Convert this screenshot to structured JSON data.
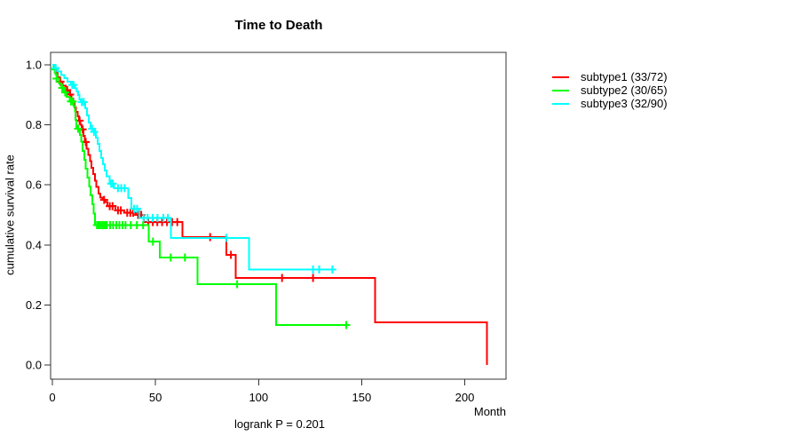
{
  "title": "Time to Death",
  "footnote": "logrank P = 0.201",
  "chart_data": {
    "type": "line",
    "subtype": "kaplan-meier-step-survival",
    "title": "Time to Death",
    "xlabel": "Month",
    "ylabel": "cumulative survival rate",
    "annotation": "logrank P = 0.201",
    "xlim": [
      0,
      220
    ],
    "ylim": [
      0.0,
      1.0
    ],
    "grid": false,
    "legend_position": "right",
    "x_ticks": [
      {
        "v": 0,
        "label": "0"
      },
      {
        "v": 50,
        "label": "50"
      },
      {
        "v": 100,
        "label": "100"
      },
      {
        "v": 150,
        "label": "150"
      },
      {
        "v": 200,
        "label": "200"
      }
    ],
    "y_ticks": [
      {
        "v": 0.0,
        "label": "0.0"
      },
      {
        "v": 0.2,
        "label": "0.2"
      },
      {
        "v": 0.4,
        "label": "0.4"
      },
      {
        "v": 0.6,
        "label": "0.6"
      },
      {
        "v": 0.8,
        "label": "0.8"
      },
      {
        "v": 1.0,
        "label": "1.0"
      }
    ],
    "series": [
      {
        "name": "subtype1",
        "label": "subtype1 (33/72)",
        "events": 33,
        "n": 72,
        "color": "#FF0000",
        "steps": [
          [
            0,
            1.0
          ],
          [
            0.8,
            0.986
          ],
          [
            1.7,
            0.972
          ],
          [
            2.6,
            0.958
          ],
          [
            3.6,
            0.944
          ],
          [
            5,
            0.93
          ],
          [
            6.5,
            0.916
          ],
          [
            8,
            0.901
          ],
          [
            9.3,
            0.887
          ],
          [
            10.1,
            0.872
          ],
          [
            10.8,
            0.858
          ],
          [
            11.5,
            0.843
          ],
          [
            12.2,
            0.829
          ],
          [
            12.9,
            0.814
          ],
          [
            13.6,
            0.8
          ],
          [
            14.3,
            0.785
          ],
          [
            15,
            0.764
          ],
          [
            15.8,
            0.743
          ],
          [
            16.6,
            0.721
          ],
          [
            17.4,
            0.7
          ],
          [
            18.2,
            0.679
          ],
          [
            19,
            0.657
          ],
          [
            19.8,
            0.636
          ],
          [
            20.6,
            0.614
          ],
          [
            21.4,
            0.593
          ],
          [
            22.3,
            0.571
          ],
          [
            23.2,
            0.557
          ],
          [
            24.4,
            0.55
          ],
          [
            25.6,
            0.543
          ],
          [
            26.8,
            0.529
          ],
          [
            30.5,
            0.515
          ],
          [
            34.8,
            0.507
          ],
          [
            40.4,
            0.5
          ],
          [
            44.3,
            0.476
          ],
          [
            63,
            0.426
          ],
          [
            84.3,
            0.367
          ],
          [
            89,
            0.29
          ],
          [
            156.6,
            0.142
          ],
          [
            210.8,
            0.0
          ]
        ],
        "censors": [
          [
            3.9,
            0.944
          ],
          [
            7.2,
            0.916
          ],
          [
            8.6,
            0.901
          ],
          [
            13.2,
            0.814
          ],
          [
            14.7,
            0.785
          ],
          [
            16.2,
            0.743
          ],
          [
            25.1,
            0.55
          ],
          [
            27.8,
            0.529
          ],
          [
            29.2,
            0.529
          ],
          [
            31.8,
            0.515
          ],
          [
            33.2,
            0.515
          ],
          [
            36.3,
            0.507
          ],
          [
            37.8,
            0.507
          ],
          [
            39.2,
            0.507
          ],
          [
            41.6,
            0.5
          ],
          [
            43.1,
            0.5
          ],
          [
            46.5,
            0.476
          ],
          [
            48.7,
            0.476
          ],
          [
            50.9,
            0.476
          ],
          [
            53.2,
            0.476
          ],
          [
            55.6,
            0.476
          ],
          [
            58.1,
            0.476
          ],
          [
            60.6,
            0.476
          ],
          [
            76.5,
            0.426
          ],
          [
            86.6,
            0.367
          ],
          [
            111.4,
            0.29
          ],
          [
            126.4,
            0.29
          ]
        ]
      },
      {
        "name": "subtype2",
        "label": "subtype2 (30/65)",
        "events": 30,
        "n": 65,
        "color": "#00FF00",
        "steps": [
          [
            0,
            1.0
          ],
          [
            0.7,
            0.985
          ],
          [
            1.5,
            0.969
          ],
          [
            2.4,
            0.954
          ],
          [
            3.3,
            0.938
          ],
          [
            4.3,
            0.923
          ],
          [
            5.5,
            0.908
          ],
          [
            6.9,
            0.893
          ],
          [
            8.3,
            0.878
          ],
          [
            10.3,
            0.862
          ],
          [
            10.9,
            0.846
          ],
          [
            11.3,
            0.816
          ],
          [
            11.7,
            0.787
          ],
          [
            13.3,
            0.766
          ],
          [
            13.9,
            0.744
          ],
          [
            14.6,
            0.713
          ],
          [
            15.4,
            0.683
          ],
          [
            16.2,
            0.654
          ],
          [
            17.1,
            0.624
          ],
          [
            17.9,
            0.595
          ],
          [
            18.6,
            0.565
          ],
          [
            19.3,
            0.535
          ],
          [
            20,
            0.505
          ],
          [
            20.7,
            0.466
          ],
          [
            46.8,
            0.411
          ],
          [
            52.1,
            0.358
          ],
          [
            70.5,
            0.269
          ],
          [
            108.4,
            0.133
          ],
          [
            142.5,
            0.133
          ]
        ],
        "censors": [
          [
            1.1,
            0.985
          ],
          [
            2,
            0.954
          ],
          [
            4.8,
            0.923
          ],
          [
            6.2,
            0.908
          ],
          [
            9,
            0.878
          ],
          [
            9.8,
            0.878
          ],
          [
            12.5,
            0.787
          ],
          [
            21.6,
            0.466
          ],
          [
            22.4,
            0.466
          ],
          [
            23.2,
            0.466
          ],
          [
            24,
            0.466
          ],
          [
            24.8,
            0.466
          ],
          [
            25.6,
            0.466
          ],
          [
            26.5,
            0.466
          ],
          [
            28,
            0.466
          ],
          [
            29.5,
            0.466
          ],
          [
            31,
            0.466
          ],
          [
            32.5,
            0.466
          ],
          [
            34,
            0.466
          ],
          [
            35.5,
            0.466
          ],
          [
            38,
            0.466
          ],
          [
            41,
            0.466
          ],
          [
            44,
            0.466
          ],
          [
            48.8,
            0.411
          ],
          [
            57.4,
            0.358
          ],
          [
            64.3,
            0.358
          ],
          [
            89.6,
            0.269
          ],
          [
            142.5,
            0.133
          ]
        ]
      },
      {
        "name": "subtype3",
        "label": "subtype3 (32/90)",
        "events": 32,
        "n": 90,
        "color": "#00FFFF",
        "steps": [
          [
            0,
            1.0
          ],
          [
            1.2,
            0.989
          ],
          [
            2.6,
            0.978
          ],
          [
            4.2,
            0.966
          ],
          [
            5.8,
            0.955
          ],
          [
            7.4,
            0.944
          ],
          [
            9,
            0.933
          ],
          [
            10.9,
            0.922
          ],
          [
            11.8,
            0.911
          ],
          [
            12.5,
            0.9
          ],
          [
            13.2,
            0.885
          ],
          [
            13.8,
            0.876
          ],
          [
            15.9,
            0.855
          ],
          [
            16.8,
            0.831
          ],
          [
            17.6,
            0.808
          ],
          [
            18.5,
            0.787
          ],
          [
            20.7,
            0.777
          ],
          [
            21.2,
            0.757
          ],
          [
            22,
            0.737
          ],
          [
            22.9,
            0.713
          ],
          [
            23.7,
            0.69
          ],
          [
            24.5,
            0.669
          ],
          [
            25.4,
            0.648
          ],
          [
            26.3,
            0.628
          ],
          [
            27.7,
            0.604
          ],
          [
            30,
            0.589
          ],
          [
            36.9,
            0.556
          ],
          [
            38.3,
            0.52
          ],
          [
            42.2,
            0.49
          ],
          [
            57.4,
            0.423
          ],
          [
            95.3,
            0.318
          ],
          [
            136,
            0.318
          ]
        ],
        "censors": [
          [
            1.6,
            0.989
          ],
          [
            9.6,
            0.933
          ],
          [
            10.2,
            0.933
          ],
          [
            14.3,
            0.876
          ],
          [
            15.2,
            0.876
          ],
          [
            19.3,
            0.787
          ],
          [
            20.2,
            0.777
          ],
          [
            28.5,
            0.604
          ],
          [
            29.3,
            0.604
          ],
          [
            31.8,
            0.589
          ],
          [
            33.4,
            0.589
          ],
          [
            35,
            0.589
          ],
          [
            39.6,
            0.52
          ],
          [
            41.1,
            0.52
          ],
          [
            44.2,
            0.49
          ],
          [
            46.2,
            0.49
          ],
          [
            48.6,
            0.49
          ],
          [
            51,
            0.49
          ],
          [
            53.8,
            0.49
          ],
          [
            56,
            0.49
          ],
          [
            84.3,
            0.423
          ],
          [
            126.4,
            0.318
          ],
          [
            129.4,
            0.318
          ],
          [
            135.8,
            0.318
          ]
        ]
      }
    ]
  }
}
